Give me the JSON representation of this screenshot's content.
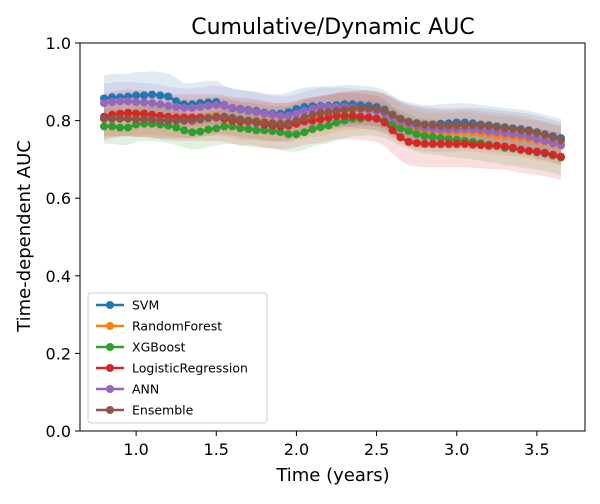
{
  "chart_data": {
    "type": "line",
    "title": "Cumulative/Dynamic AUC",
    "xlabel": "Time (years)",
    "ylabel": "Time-dependent AUC",
    "xlim": [
      0.65,
      3.8
    ],
    "ylim": [
      0.0,
      1.0
    ],
    "x_ticks": [
      1.0,
      1.5,
      2.0,
      2.5,
      3.0,
      3.5
    ],
    "x_tick_labels": [
      "1.0",
      "1.5",
      "2.0",
      "2.5",
      "3.0",
      "3.5"
    ],
    "y_ticks": [
      0.0,
      0.2,
      0.4,
      0.6,
      0.8,
      1.0
    ],
    "y_tick_labels": [
      "0.0",
      "0.2",
      "0.4",
      "0.6",
      "0.8",
      "1.0"
    ],
    "grid": false,
    "legend_position": "lower-left",
    "markers": "circle",
    "bands": "95% interval shaded around each series",
    "x": [
      0.8,
      0.85,
      0.9,
      0.95,
      1.0,
      1.05,
      1.1,
      1.15,
      1.2,
      1.25,
      1.3,
      1.35,
      1.4,
      1.45,
      1.5,
      1.55,
      1.6,
      1.65,
      1.7,
      1.75,
      1.8,
      1.85,
      1.9,
      1.95,
      2.0,
      2.05,
      2.1,
      2.15,
      2.2,
      2.25,
      2.3,
      2.35,
      2.4,
      2.45,
      2.5,
      2.55,
      2.6,
      2.65,
      2.7,
      2.75,
      2.8,
      2.85,
      2.9,
      2.95,
      3.0,
      3.05,
      3.1,
      3.15,
      3.2,
      3.25,
      3.3,
      3.35,
      3.4,
      3.45,
      3.5,
      3.55,
      3.6,
      3.65
    ],
    "series": [
      {
        "name": "SVM",
        "color": "#1f77b4",
        "values": [
          0.857,
          0.86,
          0.86,
          0.862,
          0.865,
          0.865,
          0.867,
          0.865,
          0.862,
          0.85,
          0.842,
          0.842,
          0.845,
          0.847,
          0.848,
          0.84,
          0.832,
          0.83,
          0.827,
          0.825,
          0.82,
          0.818,
          0.818,
          0.822,
          0.83,
          0.835,
          0.837,
          0.838,
          0.838,
          0.84,
          0.842,
          0.842,
          0.84,
          0.838,
          0.835,
          0.828,
          0.815,
          0.803,
          0.797,
          0.793,
          0.79,
          0.79,
          0.792,
          0.793,
          0.795,
          0.795,
          0.793,
          0.79,
          0.788,
          0.785,
          0.783,
          0.78,
          0.778,
          0.775,
          0.77,
          0.765,
          0.76,
          0.755
        ],
        "band": [
          0.06,
          0.06,
          0.06,
          0.06,
          0.06,
          0.06,
          0.06,
          0.06,
          0.06,
          0.06,
          0.055,
          0.055,
          0.055,
          0.055,
          0.055,
          0.05,
          0.05,
          0.05,
          0.05,
          0.05,
          0.05,
          0.05,
          0.05,
          0.05,
          0.05,
          0.05,
          0.05,
          0.05,
          0.05,
          0.05,
          0.05,
          0.05,
          0.05,
          0.05,
          0.05,
          0.05,
          0.05,
          0.05,
          0.05,
          0.05,
          0.05,
          0.05,
          0.05,
          0.05,
          0.05,
          0.05,
          0.05,
          0.05,
          0.05,
          0.05,
          0.05,
          0.05,
          0.05,
          0.05,
          0.05,
          0.05,
          0.05,
          0.05
        ]
      },
      {
        "name": "RandomForest",
        "color": "#ff7f0e",
        "values": [
          0.805,
          0.808,
          0.81,
          0.812,
          0.812,
          0.812,
          0.812,
          0.812,
          0.81,
          0.808,
          0.805,
          0.805,
          0.808,
          0.81,
          0.812,
          0.81,
          0.805,
          0.8,
          0.8,
          0.8,
          0.798,
          0.795,
          0.795,
          0.795,
          0.8,
          0.805,
          0.808,
          0.81,
          0.815,
          0.82,
          0.825,
          0.828,
          0.828,
          0.828,
          0.825,
          0.818,
          0.805,
          0.792,
          0.782,
          0.775,
          0.77,
          0.77,
          0.77,
          0.77,
          0.77,
          0.772,
          0.77,
          0.768,
          0.765,
          0.762,
          0.76,
          0.758,
          0.755,
          0.752,
          0.748,
          0.745,
          0.74,
          0.735
        ],
        "band": [
          0.05,
          0.05,
          0.05,
          0.05,
          0.05,
          0.05,
          0.05,
          0.05,
          0.05,
          0.05,
          0.05,
          0.05,
          0.05,
          0.05,
          0.05,
          0.05,
          0.05,
          0.05,
          0.05,
          0.05,
          0.05,
          0.05,
          0.05,
          0.05,
          0.05,
          0.05,
          0.05,
          0.05,
          0.05,
          0.05,
          0.05,
          0.05,
          0.05,
          0.05,
          0.05,
          0.05,
          0.05,
          0.05,
          0.05,
          0.05,
          0.05,
          0.05,
          0.05,
          0.05,
          0.05,
          0.05,
          0.05,
          0.05,
          0.05,
          0.05,
          0.05,
          0.05,
          0.05,
          0.05,
          0.05,
          0.05,
          0.05,
          0.05
        ]
      },
      {
        "name": "XGBoost",
        "color": "#2ca02c",
        "values": [
          0.785,
          0.785,
          0.782,
          0.782,
          0.79,
          0.792,
          0.792,
          0.79,
          0.787,
          0.782,
          0.775,
          0.77,
          0.772,
          0.777,
          0.78,
          0.785,
          0.785,
          0.78,
          0.778,
          0.775,
          0.775,
          0.773,
          0.77,
          0.765,
          0.765,
          0.77,
          0.778,
          0.783,
          0.787,
          0.795,
          0.8,
          0.805,
          0.805,
          0.808,
          0.805,
          0.8,
          0.79,
          0.78,
          0.773,
          0.765,
          0.76,
          0.758,
          0.755,
          0.752,
          0.75,
          0.748,
          0.745,
          0.742,
          0.738,
          0.735,
          0.73,
          0.728,
          0.725,
          0.722,
          0.718,
          0.715,
          0.71,
          0.705
        ],
        "band": [
          0.045,
          0.045,
          0.045,
          0.045,
          0.045,
          0.045,
          0.045,
          0.045,
          0.045,
          0.045,
          0.045,
          0.045,
          0.045,
          0.045,
          0.045,
          0.045,
          0.045,
          0.045,
          0.045,
          0.045,
          0.045,
          0.045,
          0.045,
          0.045,
          0.045,
          0.045,
          0.045,
          0.045,
          0.045,
          0.045,
          0.045,
          0.045,
          0.045,
          0.045,
          0.045,
          0.045,
          0.045,
          0.045,
          0.045,
          0.045,
          0.045,
          0.045,
          0.045,
          0.045,
          0.045,
          0.045,
          0.045,
          0.045,
          0.045,
          0.045,
          0.045,
          0.045,
          0.045,
          0.045,
          0.045,
          0.045,
          0.045,
          0.045
        ]
      },
      {
        "name": "LogisticRegression",
        "color": "#d62728",
        "values": [
          0.81,
          0.815,
          0.818,
          0.82,
          0.818,
          0.818,
          0.815,
          0.812,
          0.81,
          0.808,
          0.808,
          0.808,
          0.808,
          0.807,
          0.808,
          0.805,
          0.8,
          0.798,
          0.798,
          0.795,
          0.79,
          0.787,
          0.785,
          0.787,
          0.792,
          0.798,
          0.8,
          0.803,
          0.807,
          0.812,
          0.812,
          0.812,
          0.81,
          0.808,
          0.805,
          0.795,
          0.775,
          0.757,
          0.745,
          0.742,
          0.74,
          0.74,
          0.74,
          0.74,
          0.74,
          0.74,
          0.738,
          0.737,
          0.735,
          0.735,
          0.733,
          0.73,
          0.725,
          0.722,
          0.72,
          0.717,
          0.712,
          0.707
        ],
        "band": [
          0.06,
          0.06,
          0.06,
          0.06,
          0.06,
          0.06,
          0.06,
          0.06,
          0.06,
          0.06,
          0.06,
          0.06,
          0.06,
          0.06,
          0.06,
          0.06,
          0.06,
          0.06,
          0.06,
          0.06,
          0.06,
          0.06,
          0.06,
          0.06,
          0.06,
          0.06,
          0.06,
          0.06,
          0.06,
          0.06,
          0.06,
          0.06,
          0.06,
          0.06,
          0.06,
          0.06,
          0.06,
          0.06,
          0.06,
          0.06,
          0.06,
          0.06,
          0.06,
          0.06,
          0.06,
          0.06,
          0.06,
          0.06,
          0.06,
          0.06,
          0.06,
          0.06,
          0.06,
          0.06,
          0.06,
          0.06,
          0.06,
          0.06
        ]
      },
      {
        "name": "ANN",
        "color": "#9467bd",
        "values": [
          0.845,
          0.848,
          0.85,
          0.85,
          0.848,
          0.847,
          0.845,
          0.842,
          0.838,
          0.835,
          0.833,
          0.833,
          0.835,
          0.838,
          0.84,
          0.838,
          0.833,
          0.828,
          0.825,
          0.822,
          0.818,
          0.815,
          0.812,
          0.812,
          0.818,
          0.825,
          0.83,
          0.835,
          0.835,
          0.835,
          0.835,
          0.833,
          0.83,
          0.828,
          0.825,
          0.818,
          0.808,
          0.798,
          0.79,
          0.785,
          0.78,
          0.778,
          0.777,
          0.777,
          0.777,
          0.778,
          0.777,
          0.775,
          0.772,
          0.77,
          0.768,
          0.765,
          0.762,
          0.758,
          0.752,
          0.748,
          0.742,
          0.738
        ],
        "band": [
          0.05,
          0.05,
          0.05,
          0.05,
          0.05,
          0.05,
          0.05,
          0.05,
          0.05,
          0.05,
          0.05,
          0.05,
          0.05,
          0.05,
          0.05,
          0.05,
          0.05,
          0.05,
          0.05,
          0.05,
          0.05,
          0.05,
          0.05,
          0.05,
          0.05,
          0.05,
          0.05,
          0.05,
          0.05,
          0.05,
          0.05,
          0.05,
          0.05,
          0.05,
          0.05,
          0.05,
          0.05,
          0.05,
          0.05,
          0.05,
          0.05,
          0.05,
          0.05,
          0.05,
          0.05,
          0.05,
          0.05,
          0.05,
          0.05,
          0.05,
          0.05,
          0.05,
          0.05,
          0.05,
          0.05,
          0.05,
          0.05,
          0.05
        ]
      },
      {
        "name": "Ensemble",
        "color": "#8c564b",
        "values": [
          0.805,
          0.805,
          0.805,
          0.805,
          0.803,
          0.803,
          0.802,
          0.8,
          0.8,
          0.8,
          0.8,
          0.8,
          0.803,
          0.807,
          0.81,
          0.81,
          0.807,
          0.803,
          0.8,
          0.798,
          0.795,
          0.793,
          0.792,
          0.793,
          0.8,
          0.808,
          0.815,
          0.82,
          0.822,
          0.825,
          0.828,
          0.83,
          0.832,
          0.832,
          0.83,
          0.825,
          0.815,
          0.805,
          0.797,
          0.793,
          0.79,
          0.788,
          0.787,
          0.787,
          0.787,
          0.788,
          0.788,
          0.787,
          0.785,
          0.783,
          0.78,
          0.778,
          0.775,
          0.772,
          0.768,
          0.763,
          0.757,
          0.75
        ],
        "band": [
          0.045,
          0.045,
          0.045,
          0.045,
          0.045,
          0.045,
          0.045,
          0.045,
          0.045,
          0.045,
          0.045,
          0.045,
          0.045,
          0.045,
          0.045,
          0.045,
          0.045,
          0.045,
          0.045,
          0.045,
          0.045,
          0.045,
          0.045,
          0.045,
          0.045,
          0.045,
          0.045,
          0.045,
          0.045,
          0.045,
          0.045,
          0.045,
          0.045,
          0.045,
          0.045,
          0.045,
          0.045,
          0.045,
          0.045,
          0.045,
          0.045,
          0.045,
          0.045,
          0.045,
          0.045,
          0.045,
          0.045,
          0.045,
          0.045,
          0.045,
          0.045,
          0.045,
          0.045,
          0.045,
          0.045,
          0.045,
          0.045,
          0.045
        ]
      }
    ]
  }
}
